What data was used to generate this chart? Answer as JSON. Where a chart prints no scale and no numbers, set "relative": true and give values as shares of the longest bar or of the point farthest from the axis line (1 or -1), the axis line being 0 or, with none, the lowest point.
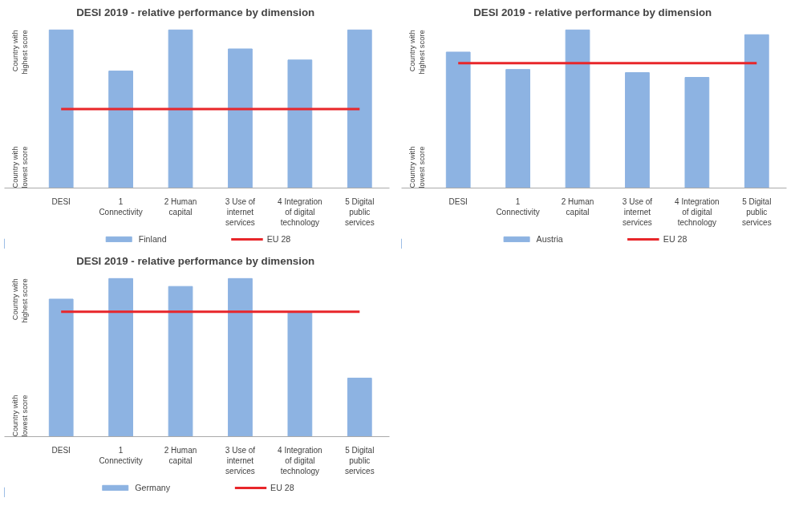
{
  "chart_data": [
    {
      "type": "bar",
      "title": "DESI 2019 -  relative performance by dimension",
      "categories": [
        "DESI",
        "1 Connectivity",
        "2 Human capital",
        "3 Use of internet services",
        "4 Integration of digital technology",
        "5 Digital public services"
      ],
      "relative": true,
      "legend": "bottom",
      "annotations": [
        "Country with highest score",
        "Country with lowest score"
      ],
      "series": [
        {
          "name": "Finland",
          "color": "#8db3e2",
          "values": [
            1,
            0.74,
            1,
            0.88,
            0.81,
            1
          ]
        },
        {
          "name": "EU 28",
          "type": "line",
          "color": "#e8262a",
          "values": [
            0.5,
            0.5,
            0.5,
            0.5,
            0.5,
            0.5
          ]
        }
      ]
    },
    {
      "type": "bar",
      "title": "DESI 2019 -  relative performance by dimension",
      "categories": [
        "DESI",
        "1 Connectivity",
        "2 Human capital",
        "3 Use of internet services",
        "4 Integration of digital technology",
        "5 Digital public services"
      ],
      "relative": true,
      "legend": "bottom",
      "annotations": [
        "Country with highest score",
        "Country with lowest score"
      ],
      "series": [
        {
          "name": "Austria",
          "color": "#8db3e2",
          "values": [
            0.86,
            0.75,
            1,
            0.73,
            0.7,
            0.97
          ]
        },
        {
          "name": "EU 28",
          "type": "line",
          "color": "#e8262a",
          "values": [
            0.79,
            0.79,
            0.79,
            0.79,
            0.79,
            0.79
          ]
        }
      ]
    },
    {
      "type": "bar",
      "title": "DESI 2019 -  relative performance by dimension",
      "categories": [
        "DESI",
        "1 Connectivity",
        "2 Human capital",
        "3 Use of internet services",
        "4 Integration of digital technology",
        "5 Digital public services"
      ],
      "relative": true,
      "legend": "bottom",
      "annotations": [
        "Country with highest score",
        "Country with lowest score"
      ],
      "series": [
        {
          "name": "Germany",
          "color": "#8db3e2",
          "values": [
            0.87,
            1,
            0.95,
            1,
            0.79,
            0.37
          ]
        },
        {
          "name": "EU 28",
          "type": "line",
          "color": "#e8262a",
          "values": [
            0.79,
            0.79,
            0.79,
            0.79,
            0.79,
            0.79
          ]
        }
      ]
    }
  ]
}
